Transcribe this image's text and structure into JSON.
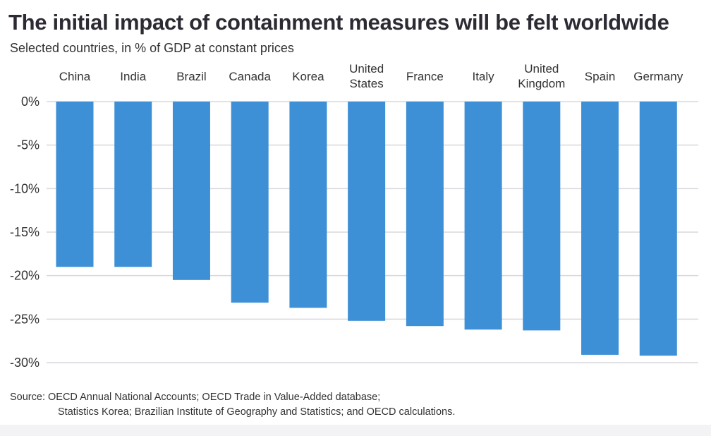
{
  "title": "The initial impact of containment measures will be felt worldwide",
  "subtitle": "Selected countries, in % of GDP at constant prices",
  "source": {
    "line1": "Source:  OECD Annual National Accounts; OECD Trade in Value-Added database;",
    "line2": "Statistics Korea; Brazilian Institute of Geography and Statistics; and OECD calculations."
  },
  "chart_data": {
    "type": "bar",
    "title": "The initial impact of containment measures will be felt worldwide",
    "subtitle": "Selected countries, in % of GDP at constant prices",
    "categories": [
      [
        "China"
      ],
      [
        "India"
      ],
      [
        "Brazil"
      ],
      [
        "Canada"
      ],
      [
        "Korea"
      ],
      [
        "United",
        "States"
      ],
      [
        "France"
      ],
      [
        "Italy"
      ],
      [
        "United",
        "Kingdom"
      ],
      [
        "Spain"
      ],
      [
        "Germany"
      ]
    ],
    "values": [
      -19,
      -19,
      -20.5,
      -23.1,
      -23.7,
      -25.2,
      -25.8,
      -26.2,
      -26.3,
      -29.1,
      -29.2
    ],
    "ylim": [
      -30,
      0
    ],
    "yticks": [
      0,
      -5,
      -10,
      -15,
      -20,
      -25,
      -30
    ],
    "tick_labels": [
      "0%",
      "-5%",
      "-10%",
      "-15%",
      "-20%",
      "-25%",
      "-30%"
    ],
    "xlabel": "",
    "ylabel": "",
    "grid": true,
    "bar_color": "#3d8fd6",
    "grid_color": "#d9d9dd"
  }
}
